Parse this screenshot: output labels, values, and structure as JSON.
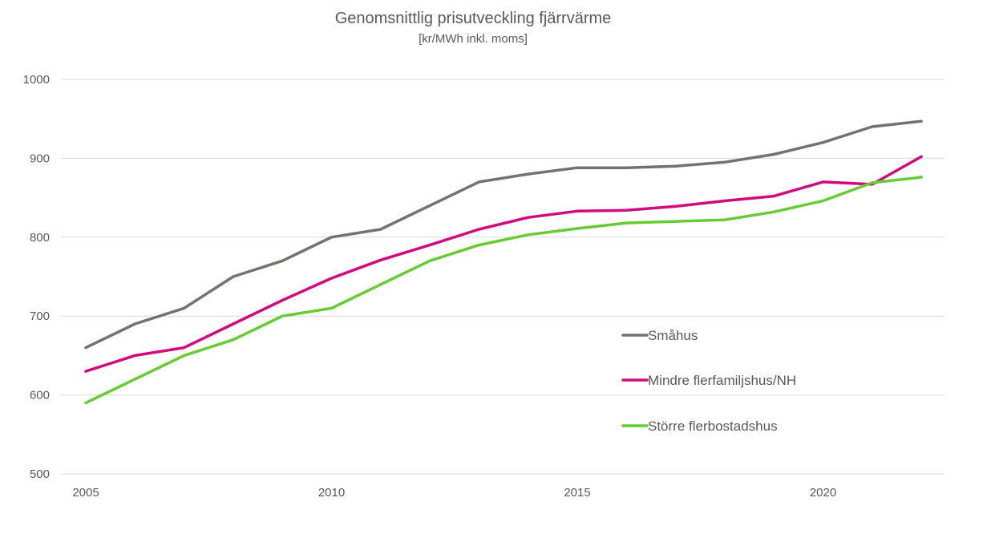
{
  "chart_data": {
    "type": "line",
    "title": "Genomsnittlig prisutveckling fjärrvärme",
    "subtitle": "[kr/MWh inkl. moms]",
    "xlabel": "",
    "ylabel": "",
    "x": [
      2005,
      2006,
      2007,
      2008,
      2009,
      2010,
      2011,
      2012,
      2013,
      2014,
      2015,
      2016,
      2017,
      2018,
      2019,
      2020,
      2021,
      2022
    ],
    "x_tick_labels": [
      "2005",
      "2010",
      "2015",
      "2020"
    ],
    "x_tick_values": [
      2005,
      2010,
      2015,
      2020
    ],
    "ylim": [
      500,
      1000
    ],
    "y_ticks": [
      500,
      600,
      700,
      800,
      900,
      1000
    ],
    "grid": true,
    "legend_position": "center-right",
    "series": [
      {
        "name": "Småhus",
        "color": "#767171",
        "values": [
          660,
          690,
          710,
          750,
          770,
          800,
          810,
          840,
          870,
          880,
          888,
          888,
          890,
          895,
          905,
          920,
          940,
          947
        ]
      },
      {
        "name": "Mindre flerfamiljshus/NH",
        "color": "#d10a7d",
        "values": [
          630,
          650,
          660,
          690,
          720,
          748,
          771,
          790,
          810,
          825,
          833,
          834,
          839,
          846,
          852,
          870,
          867,
          902
        ]
      },
      {
        "name": "Större flerbostadshus",
        "color": "#66cc33",
        "values": [
          590,
          620,
          650,
          670,
          700,
          710,
          740,
          770,
          790,
          803,
          811,
          818,
          820,
          822,
          832,
          846,
          869,
          876
        ]
      }
    ]
  }
}
